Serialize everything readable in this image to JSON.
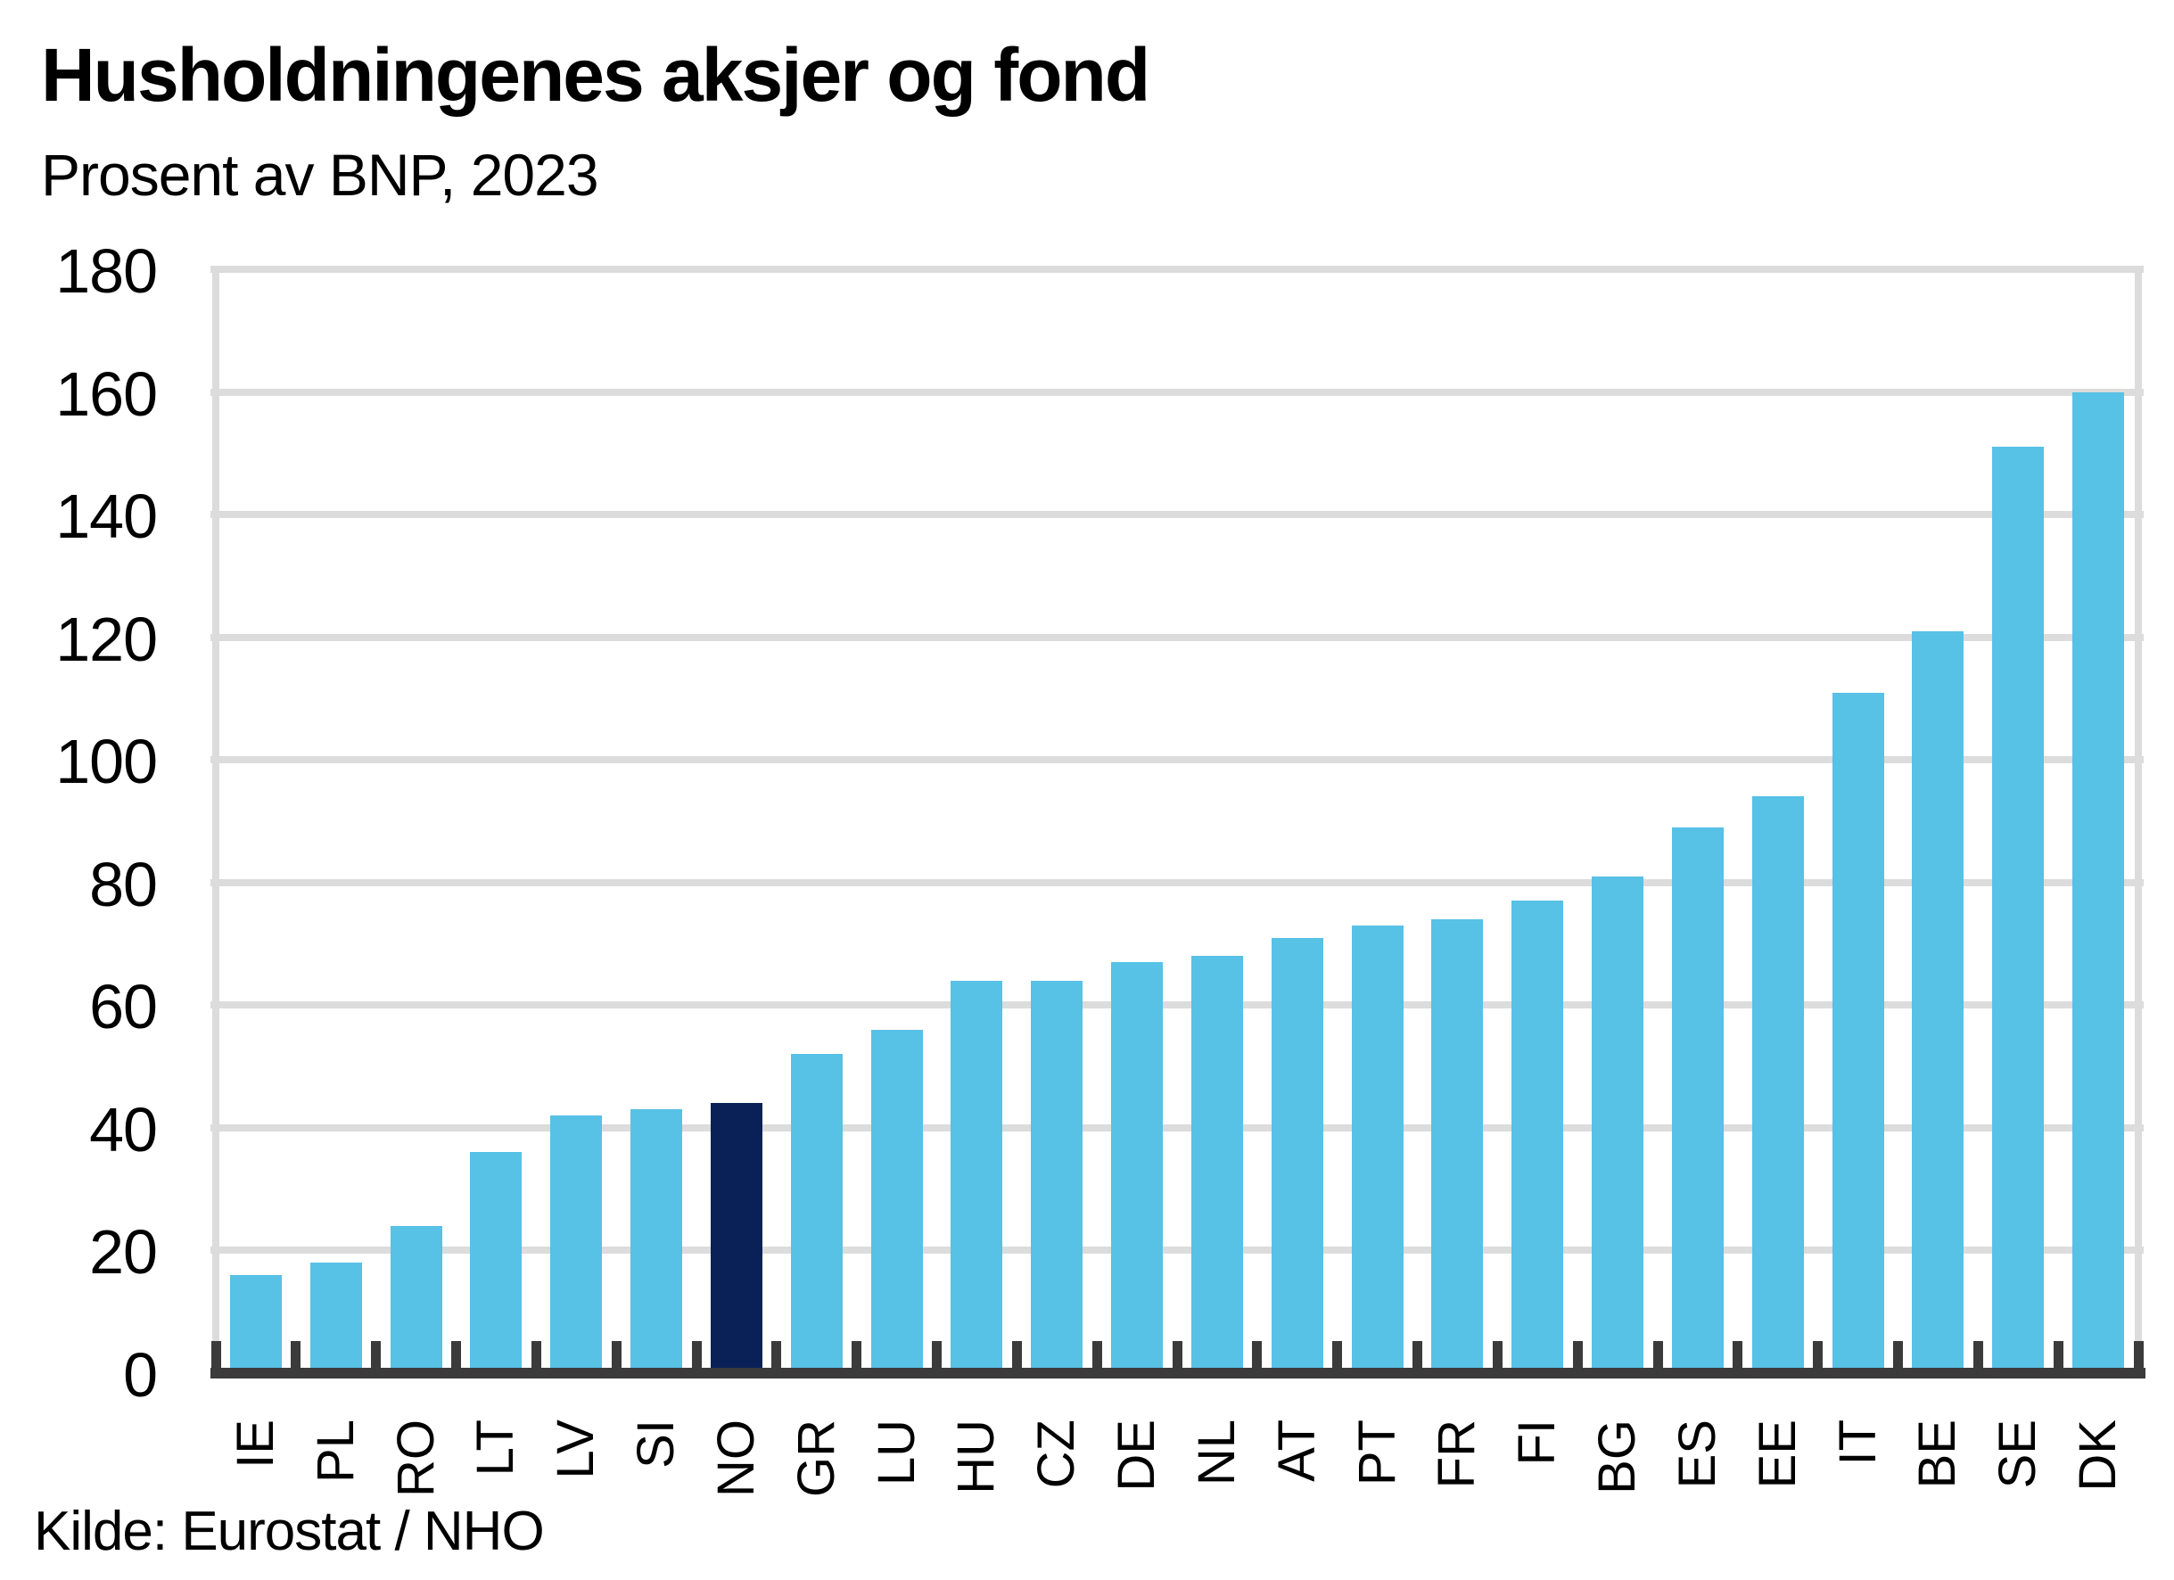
{
  "title": "Husholdningenes aksjer og fond",
  "subtitle": "Prosent av BNP, 2023",
  "source": "Kilde: Eurostat / NHO",
  "colors": {
    "bar": "#57C1E6",
    "highlight_bar": "#0A2158",
    "grid": "#DCDCDC",
    "axis": "#3B3B3B",
    "text": "#000000",
    "background": "#FFFFFF"
  },
  "chart_data": {
    "type": "bar",
    "title": "Husholdningenes aksjer og fond",
    "subtitle": "Prosent av BNP, 2023",
    "xlabel": "",
    "ylabel": "Prosent av BNP",
    "categories": [
      "IE",
      "PL",
      "RO",
      "LT",
      "LV",
      "SI",
      "NO",
      "GR",
      "LU",
      "HU",
      "CZ",
      "DE",
      "NL",
      "AT",
      "PT",
      "FR",
      "FI",
      "BG",
      "ES",
      "EE",
      "IT",
      "BE",
      "SE",
      "DK"
    ],
    "values": [
      16,
      18,
      24,
      36,
      42,
      43,
      44,
      52,
      56,
      64,
      64,
      67,
      68,
      71,
      73,
      74,
      77,
      81,
      89,
      94,
      111,
      121,
      151,
      160
    ],
    "highlighted_category": "NO",
    "ylim": [
      0,
      180
    ],
    "ytick_step": 20,
    "yticks": [
      0,
      20,
      40,
      60,
      80,
      100,
      120,
      140,
      160,
      180
    ],
    "grid": "horizontal",
    "legend": "none",
    "x_tick_label_rotation": -90
  }
}
